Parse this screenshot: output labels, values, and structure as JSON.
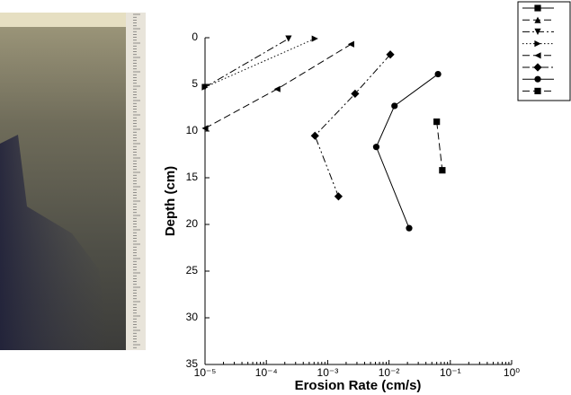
{
  "chart_data": {
    "type": "line",
    "x_label": "Erosion Rate (cm/s)",
    "y_label": "Depth (cm)",
    "xscale": "log",
    "xlim": [
      1e-05,
      1
    ],
    "xticks": [
      {
        "value": 1e-05,
        "label": "10⁻⁵"
      },
      {
        "value": 0.0001,
        "label": "10⁻⁴"
      },
      {
        "value": 0.001,
        "label": "10⁻³"
      },
      {
        "value": 0.01,
        "label": "10⁻²"
      },
      {
        "value": 0.1,
        "label": "10⁻¹"
      },
      {
        "value": 1,
        "label": "10⁰"
      }
    ],
    "ylim": [
      35,
      0
    ],
    "yticks": [
      0,
      5,
      10,
      15,
      20,
      25,
      30,
      35
    ],
    "legend": "top-right",
    "series": [
      {
        "marker": "square",
        "dash": "solid",
        "color": "#000000",
        "x": [],
        "values": []
      },
      {
        "marker": "triangle-up",
        "dash": "dash",
        "color": "#000000",
        "x": [],
        "values": []
      },
      {
        "marker": "triangle-down",
        "dash": "dash-dot",
        "color": "#000000",
        "x": [
          1e-05,
          0.00023
        ],
        "values": [
          5.3,
          0.1
        ]
      },
      {
        "marker": "triangle-right",
        "dash": "dot",
        "color": "#000000",
        "x": [
          1e-05,
          0.00062
        ],
        "values": [
          5.3,
          0.1
        ]
      },
      {
        "marker": "triangle-left",
        "dash": "dash",
        "color": "#000000",
        "x": [
          1e-05,
          0.00015,
          0.0024
        ],
        "values": [
          9.7,
          5.5,
          0.7
        ]
      },
      {
        "marker": "diamond",
        "dash": "dash-dot-dot",
        "color": "#000000",
        "x": [
          0.0105,
          0.0028,
          0.00062,
          0.0015
        ],
        "values": [
          1.8,
          6.0,
          10.5,
          17.0
        ]
      },
      {
        "marker": "circle",
        "dash": "solid",
        "color": "#000000",
        "x": [
          0.063,
          0.0123,
          0.0062,
          0.0213
        ],
        "values": [
          3.9,
          7.3,
          11.7,
          20.4
        ]
      },
      {
        "marker": "square",
        "dash": "dash",
        "color": "#000000",
        "x": [
          0.06,
          0.074
        ],
        "values": [
          9.0,
          14.2
        ]
      }
    ]
  }
}
